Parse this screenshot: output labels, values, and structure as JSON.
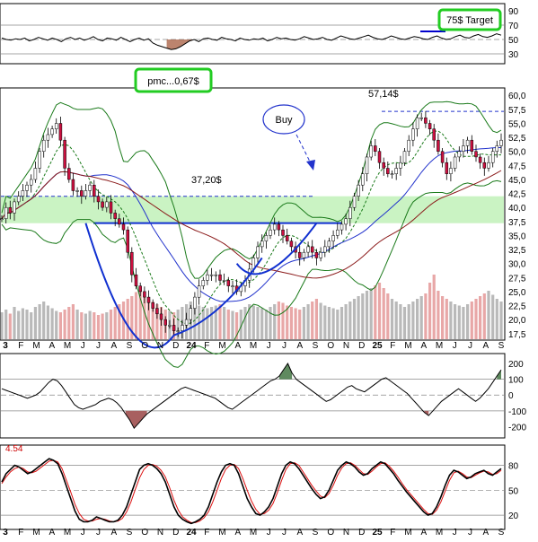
{
  "chart_data": {
    "type": "candlestick",
    "x_axis": {
      "labels": [
        "3",
        "F",
        "M",
        "A",
        "M",
        "J",
        "J",
        "A",
        "S",
        "O",
        "N",
        "D",
        "24",
        "F",
        "M",
        "A",
        "M",
        "J",
        "J",
        "A",
        "S",
        "O",
        "N",
        "D",
        "25",
        "F",
        "M",
        "A",
        "M",
        "J",
        "J",
        "A",
        "S"
      ],
      "bold_labels": [
        "3",
        "24",
        "25"
      ]
    },
    "top_panel": {
      "ticks": [
        "90",
        "70",
        "50",
        "30"
      ],
      "ylim": [
        20,
        95
      ],
      "line": [
        52,
        50,
        49,
        51,
        50,
        52,
        48,
        50,
        53,
        51,
        49,
        52,
        50,
        47,
        51,
        53,
        50,
        52,
        49,
        51,
        54,
        50,
        48,
        52,
        51,
        49,
        53,
        50,
        47,
        50,
        52,
        49,
        51,
        45,
        42,
        40,
        38,
        36,
        37,
        40,
        44,
        48,
        50,
        47,
        51,
        52,
        50,
        49,
        53,
        51,
        50,
        48,
        52,
        50,
        49,
        51,
        50,
        52,
        48,
        50,
        53,
        51,
        52,
        50,
        49,
        51,
        54,
        52,
        50,
        51,
        53,
        50,
        49,
        52,
        55,
        53,
        51,
        50,
        52,
        54,
        56,
        53,
        51,
        50,
        52,
        55,
        53,
        51,
        50,
        52,
        54,
        53,
        51,
        50,
        53,
        55,
        52,
        50,
        51,
        54,
        56,
        53,
        52,
        55,
        57,
        54,
        53,
        55,
        58,
        56
      ],
      "shaded": [
        {
          "from": 36,
          "to": 42,
          "color": "#a05030"
        }
      ]
    },
    "main_panel": {
      "ticks": [
        "60,0",
        "57,5",
        "55,0",
        "52,5",
        "50,0",
        "47,5",
        "45,0",
        "42,5",
        "40,0",
        "37,5",
        "35,0",
        "32,5",
        "30,0",
        "27,5",
        "25,0",
        "22,5",
        "20,0",
        "17,5"
      ],
      "ylim": [
        16.5,
        61
      ],
      "close": [
        38,
        40,
        39,
        41,
        42,
        43,
        44,
        45,
        47,
        50,
        52,
        53,
        54,
        55,
        52,
        47,
        45,
        43,
        43,
        42,
        43,
        44,
        42,
        41,
        40,
        41,
        39,
        38,
        37,
        36,
        32,
        28,
        26,
        25,
        24,
        23,
        22,
        21,
        20,
        19,
        19,
        18,
        18,
        19,
        20,
        22,
        24,
        26,
        27,
        28,
        28,
        28,
        27,
        27,
        26,
        26,
        25,
        26,
        27,
        29,
        31,
        33,
        34,
        35,
        36,
        37,
        36,
        35,
        34,
        33,
        32,
        31,
        32,
        33,
        32,
        31,
        32,
        33,
        34,
        35,
        36,
        37,
        38,
        40,
        42,
        44,
        46,
        49,
        51,
        50,
        48,
        47,
        46,
        46,
        47,
        48,
        50,
        52,
        54,
        56,
        56,
        55,
        54,
        52,
        50,
        48,
        46,
        47,
        49,
        50,
        51,
        52,
        50,
        49,
        48,
        47,
        48,
        50,
        51,
        52
      ],
      "volume": [
        20,
        22,
        19,
        24,
        21,
        23,
        22,
        20,
        24,
        26,
        28,
        25,
        23,
        21,
        20,
        22,
        24,
        26,
        22,
        20,
        19,
        21,
        20,
        18,
        19,
        20,
        22,
        24,
        26,
        28,
        30,
        32,
        35,
        38,
        34,
        30,
        28,
        26,
        24,
        22,
        21,
        20,
        22,
        24,
        26,
        28,
        27,
        25,
        24,
        23,
        24,
        25,
        26,
        24,
        22,
        21,
        20,
        22,
        24,
        26,
        25,
        24,
        23,
        22,
        24,
        26,
        28,
        27,
        25,
        24,
        23,
        22,
        24,
        26,
        28,
        30,
        27,
        25,
        24,
        23,
        22,
        24,
        26,
        28,
        30,
        32,
        34,
        36,
        38,
        40,
        42,
        38,
        34,
        30,
        28,
        26,
        24,
        26,
        28,
        30,
        32,
        34,
        42,
        48,
        36,
        32,
        30,
        28,
        26,
        25,
        24,
        26,
        28,
        30,
        32,
        34,
        36,
        33,
        30,
        28
      ],
      "annotations": {
        "pmc_label": "pmc...0,67$",
        "buy_label": "Buy",
        "high_label": "57,14$",
        "level_label": "37,20$",
        "target_label": "75$ Target"
      },
      "levels": {
        "high": 57.14,
        "neckline": 37.2,
        "support": 42
      }
    },
    "macd_panel": {
      "ticks": [
        "200",
        "100",
        "0",
        "-100",
        "-200"
      ],
      "ylim": [
        -260,
        240
      ],
      "line": [
        40,
        30,
        20,
        10,
        0,
        -10,
        -20,
        -10,
        0,
        20,
        50,
        80,
        100,
        90,
        60,
        20,
        -20,
        -60,
        -80,
        -90,
        -80,
        -70,
        -60,
        -40,
        -30,
        -20,
        -30,
        -50,
        -80,
        -120,
        -160,
        -210,
        -180,
        -150,
        -120,
        -100,
        -80,
        -60,
        -40,
        -20,
        0,
        20,
        40,
        50,
        40,
        30,
        20,
        10,
        0,
        -10,
        -20,
        -40,
        -60,
        -80,
        -90,
        -70,
        -50,
        -30,
        -10,
        10,
        30,
        50,
        70,
        90,
        100,
        120,
        160,
        200,
        140,
        100,
        80,
        60,
        40,
        20,
        0,
        -20,
        -40,
        -30,
        -10,
        10,
        30,
        50,
        60,
        40,
        30,
        20,
        40,
        60,
        80,
        100,
        110,
        90,
        70,
        50,
        30,
        10,
        -20,
        -50,
        -80,
        -110,
        -130,
        -100,
        -70,
        -40,
        -20,
        0,
        20,
        40,
        20,
        0,
        -20,
        -40,
        -20,
        10,
        40,
        80,
        120,
        160
      ]
    },
    "stoch_panel": {
      "ticks": [
        "80",
        "50",
        "20"
      ],
      "ylim": [
        5,
        100
      ],
      "value_label": "4.54",
      "k_line": [
        60,
        70,
        75,
        80,
        78,
        74,
        70,
        72,
        76,
        80,
        84,
        88,
        86,
        82,
        70,
        55,
        40,
        25,
        15,
        12,
        12,
        14,
        18,
        16,
        14,
        12,
        12,
        14,
        20,
        30,
        45,
        60,
        75,
        80,
        82,
        80,
        76,
        70,
        60,
        45,
        30,
        20,
        15,
        12,
        10,
        12,
        15,
        20,
        30,
        45,
        60,
        72,
        80,
        82,
        80,
        70,
        55,
        40,
        30,
        22,
        20,
        24,
        30,
        40,
        55,
        70,
        80,
        84,
        82,
        76,
        68,
        60,
        52,
        45,
        40,
        42,
        50,
        62,
        74,
        80,
        84,
        82,
        78,
        72,
        68,
        70,
        76,
        80,
        84,
        82,
        76,
        70,
        62,
        55,
        48,
        42,
        36,
        30,
        24,
        20,
        22,
        30,
        42,
        56,
        68,
        74,
        72,
        68,
        64,
        66,
        70,
        72,
        74,
        70,
        68,
        72,
        76
      ],
      "d_line": [
        58,
        66,
        72,
        76,
        78,
        76,
        72,
        71,
        73,
        77,
        81,
        85,
        86,
        84,
        76,
        62,
        48,
        33,
        22,
        15,
        13,
        13,
        15,
        16,
        15,
        13,
        12,
        13,
        16,
        24,
        36,
        51,
        65,
        75,
        80,
        81,
        79,
        74,
        66,
        53,
        38,
        26,
        18,
        14,
        11,
        11,
        13,
        17,
        24,
        36,
        50,
        64,
        75,
        80,
        81,
        76,
        64,
        50,
        37,
        27,
        21,
        22,
        26,
        34,
        47,
        62,
        75,
        82,
        83,
        80,
        72,
        64,
        56,
        49,
        43,
        41,
        46,
        56,
        68,
        77,
        82,
        83,
        80,
        75,
        70,
        69,
        73,
        78,
        82,
        83,
        79,
        73,
        66,
        58,
        51,
        45,
        39,
        33,
        27,
        22,
        21,
        26,
        36,
        49,
        62,
        71,
        73,
        70,
        66,
        65,
        68,
        71,
        73,
        72,
        69,
        70,
        74
      ]
    }
  }
}
